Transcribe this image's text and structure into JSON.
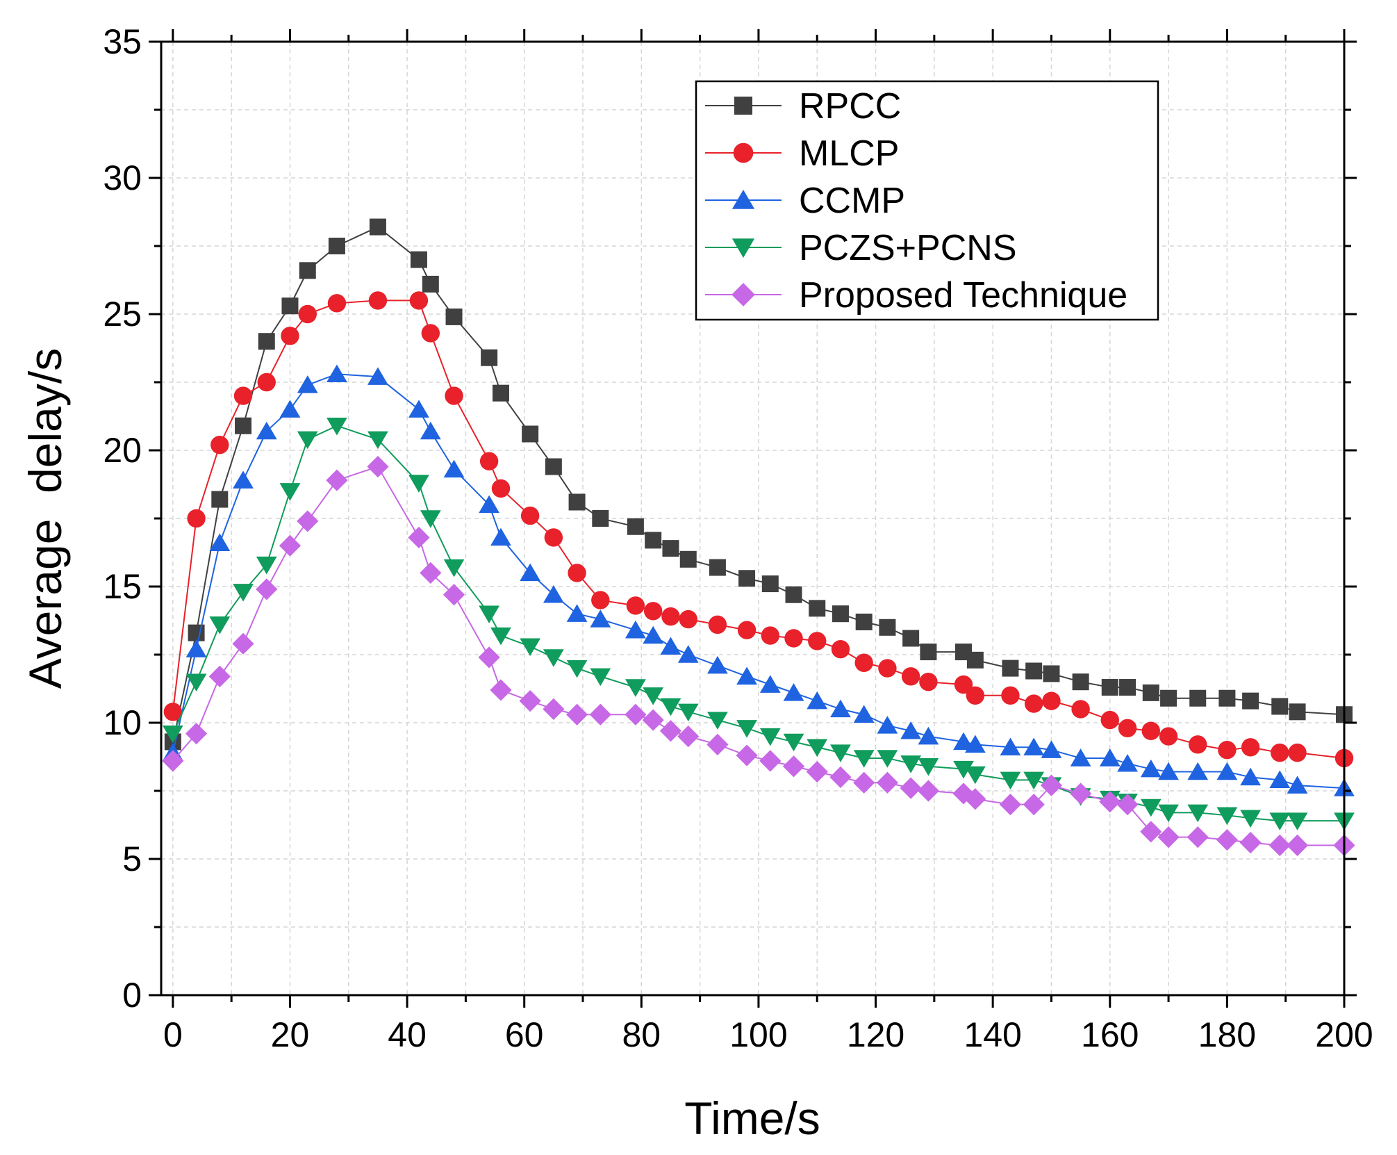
{
  "chart_data": {
    "type": "line",
    "title": "",
    "xlabel": "Time/s",
    "ylabel": "Average  delay/s",
    "xlim": [
      -2,
      200
    ],
    "ylim": [
      0,
      35
    ],
    "xticks": [
      0,
      20,
      40,
      60,
      80,
      100,
      120,
      140,
      160,
      180,
      200
    ],
    "yticks": [
      0,
      5,
      10,
      15,
      20,
      25,
      30,
      35
    ],
    "x_tick_labels": [
      "0",
      "20",
      "40",
      "60",
      "80",
      "100",
      "120",
      "140",
      "160",
      "180",
      "200"
    ],
    "y_tick_labels": [
      "0",
      "5",
      "10",
      "15",
      "20",
      "25",
      "30",
      "35"
    ],
    "grid": true,
    "legend_position": "top-right",
    "series": [
      {
        "name": "RPCC",
        "color": "#404040",
        "marker": "square",
        "x": [
          0,
          4,
          8,
          12,
          16,
          20,
          23,
          28,
          35,
          42,
          44,
          48,
          54,
          56,
          61,
          65,
          69,
          73,
          79,
          82,
          85,
          88,
          93,
          98,
          102,
          106,
          110,
          114,
          118,
          122,
          126,
          129,
          135,
          137,
          143,
          147,
          150,
          155,
          160,
          163,
          167,
          170,
          175,
          180,
          184,
          189,
          192,
          200
        ],
        "y": [
          9.3,
          13.3,
          18.2,
          20.9,
          24.0,
          25.3,
          26.6,
          27.5,
          28.2,
          27.0,
          26.1,
          24.9,
          23.4,
          22.1,
          20.6,
          19.4,
          18.1,
          17.5,
          17.2,
          16.7,
          16.4,
          16.0,
          15.7,
          15.3,
          15.1,
          14.7,
          14.2,
          14.0,
          13.7,
          13.5,
          13.1,
          12.6,
          12.6,
          12.3,
          12.0,
          11.9,
          11.8,
          11.5,
          11.3,
          11.3,
          11.1,
          10.9,
          10.9,
          10.9,
          10.8,
          10.6,
          10.4,
          10.3
        ]
      },
      {
        "name": "MLCP",
        "color": "#e8212a",
        "marker": "circle",
        "x": [
          0,
          4,
          8,
          12,
          16,
          20,
          23,
          28,
          35,
          42,
          44,
          48,
          54,
          56,
          61,
          65,
          69,
          73,
          79,
          82,
          85,
          88,
          93,
          98,
          102,
          106,
          110,
          114,
          118,
          122,
          126,
          129,
          135,
          137,
          143,
          147,
          150,
          155,
          160,
          163,
          167,
          170,
          175,
          180,
          184,
          189,
          192,
          200
        ],
        "y": [
          10.4,
          17.5,
          20.2,
          22.0,
          22.5,
          24.2,
          25.0,
          25.4,
          25.5,
          25.5,
          24.3,
          22.0,
          19.6,
          18.6,
          17.6,
          16.8,
          15.5,
          14.5,
          14.3,
          14.1,
          13.9,
          13.8,
          13.6,
          13.4,
          13.2,
          13.1,
          13.0,
          12.7,
          12.2,
          12.0,
          11.7,
          11.5,
          11.4,
          11.0,
          11.0,
          10.7,
          10.8,
          10.5,
          10.1,
          9.8,
          9.7,
          9.5,
          9.2,
          9.0,
          9.1,
          8.9,
          8.9,
          8.7
        ]
      },
      {
        "name": "CCMP",
        "color": "#1f63e0",
        "marker": "triangle-up",
        "x": [
          0,
          4,
          8,
          12,
          16,
          20,
          23,
          28,
          35,
          42,
          44,
          48,
          54,
          56,
          61,
          65,
          69,
          73,
          79,
          82,
          85,
          88,
          93,
          98,
          102,
          106,
          110,
          114,
          118,
          122,
          126,
          129,
          135,
          137,
          143,
          147,
          150,
          155,
          160,
          163,
          167,
          170,
          175,
          180,
          184,
          189,
          192,
          200
        ],
        "y": [
          8.9,
          12.7,
          16.6,
          18.9,
          20.7,
          21.5,
          22.4,
          22.8,
          22.7,
          21.5,
          20.7,
          19.3,
          18.0,
          16.8,
          15.5,
          14.7,
          14.0,
          13.8,
          13.4,
          13.2,
          12.8,
          12.5,
          12.1,
          11.7,
          11.4,
          11.1,
          10.8,
          10.5,
          10.3,
          9.9,
          9.7,
          9.5,
          9.3,
          9.2,
          9.1,
          9.1,
          9.0,
          8.7,
          8.7,
          8.5,
          8.3,
          8.2,
          8.2,
          8.2,
          8.0,
          7.9,
          7.7,
          7.6
        ]
      },
      {
        "name": "PCZS+PCNS",
        "color": "#109c5c",
        "marker": "triangle-down",
        "x": [
          0,
          4,
          8,
          12,
          16,
          20,
          23,
          28,
          35,
          42,
          44,
          48,
          54,
          56,
          61,
          65,
          69,
          73,
          79,
          82,
          85,
          88,
          93,
          98,
          102,
          106,
          110,
          114,
          118,
          122,
          126,
          129,
          135,
          137,
          143,
          147,
          150,
          155,
          160,
          163,
          167,
          170,
          175,
          180,
          184,
          189,
          192,
          200
        ],
        "y": [
          9.6,
          11.5,
          13.6,
          14.8,
          15.8,
          18.5,
          20.4,
          20.9,
          20.4,
          18.8,
          17.5,
          15.7,
          14.0,
          13.2,
          12.8,
          12.4,
          12.0,
          11.7,
          11.3,
          11.0,
          10.6,
          10.4,
          10.1,
          9.8,
          9.5,
          9.3,
          9.1,
          8.9,
          8.7,
          8.7,
          8.5,
          8.4,
          8.3,
          8.1,
          7.9,
          7.9,
          7.7,
          7.3,
          7.2,
          7.1,
          6.9,
          6.7,
          6.7,
          6.6,
          6.5,
          6.4,
          6.4,
          6.4
        ]
      },
      {
        "name": "Proposed Technique",
        "color": "#c768e6",
        "marker": "diamond",
        "x": [
          0,
          4,
          8,
          12,
          16,
          20,
          23,
          28,
          35,
          42,
          44,
          48,
          54,
          56,
          61,
          65,
          69,
          73,
          79,
          82,
          85,
          88,
          93,
          98,
          102,
          106,
          110,
          114,
          118,
          122,
          126,
          129,
          135,
          137,
          143,
          147,
          150,
          155,
          160,
          163,
          167,
          170,
          175,
          180,
          184,
          189,
          192,
          200
        ],
        "y": [
          8.6,
          9.6,
          11.7,
          12.9,
          14.9,
          16.5,
          17.4,
          18.9,
          19.4,
          16.8,
          15.5,
          14.7,
          12.4,
          11.2,
          10.8,
          10.5,
          10.3,
          10.3,
          10.3,
          10.1,
          9.7,
          9.5,
          9.2,
          8.8,
          8.6,
          8.4,
          8.2,
          8.0,
          7.8,
          7.8,
          7.6,
          7.5,
          7.4,
          7.2,
          7.0,
          7.0,
          7.7,
          7.4,
          7.1,
          7.0,
          6.0,
          5.8,
          5.8,
          5.7,
          5.6,
          5.5,
          5.5,
          5.5
        ]
      }
    ]
  }
}
